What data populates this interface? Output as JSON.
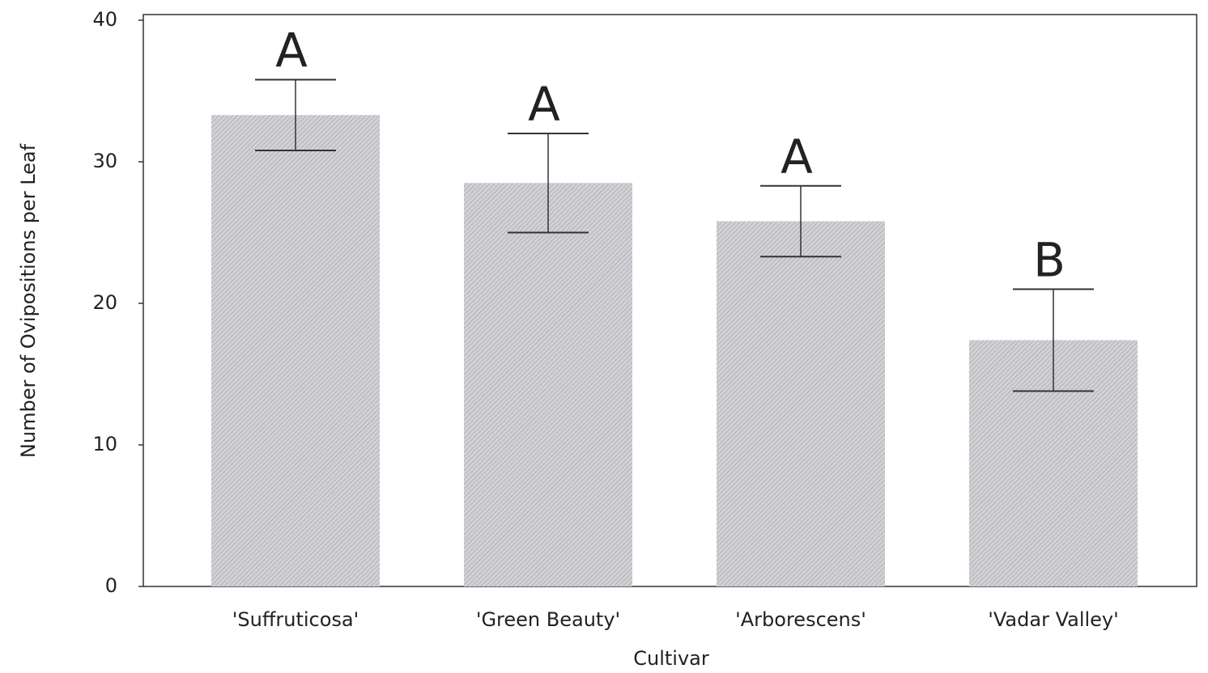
{
  "chart_data": {
    "type": "bar",
    "ylabel": "Number of Ovipositions per Leaf",
    "xlabel": "Cultivar",
    "categories": [
      "'Suffruticosa'",
      "'Green Beauty'",
      "'Arborescens'",
      "'Vadar Valley'"
    ],
    "values": [
      33.3,
      28.5,
      25.8,
      17.4
    ],
    "errors": [
      2.5,
      3.5,
      2.5,
      3.6
    ],
    "letters": [
      "A",
      "A",
      "A",
      "B"
    ],
    "color": "#c4c3c8",
    "ylim": [
      0,
      40
    ],
    "yticks": [
      0,
      10,
      20,
      30,
      40
    ],
    "grid": false
  }
}
